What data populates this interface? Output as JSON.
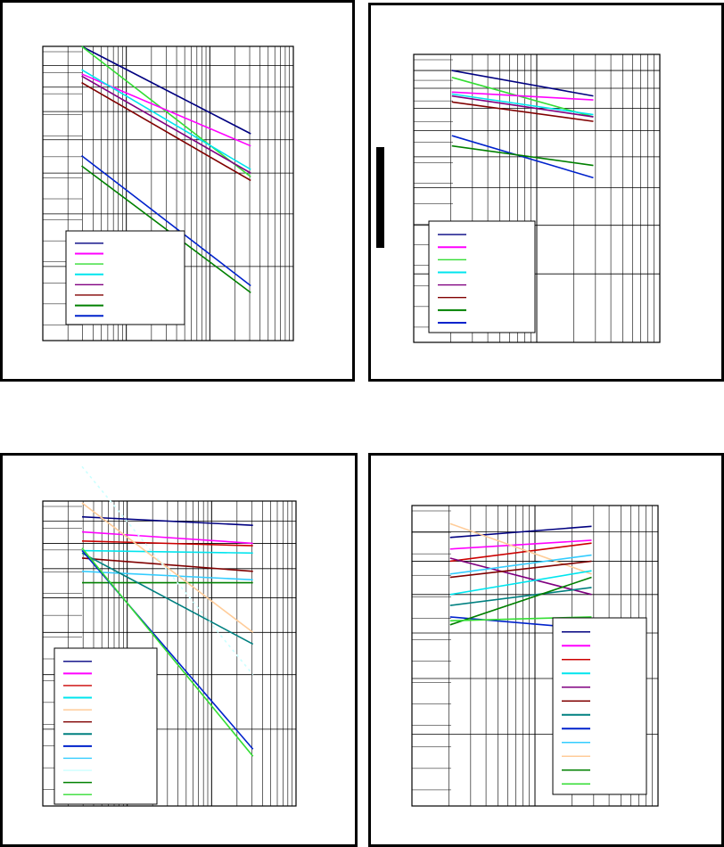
{
  "colors": {
    "navy": "#000080",
    "magenta": "#ff00ff",
    "red": "#cc0000",
    "cyan": "#00e5ee",
    "purple": "#800080",
    "darkred": "#800000",
    "teal": "#008080",
    "blue": "#0022cc",
    "skyblue": "#33ccff",
    "peach": "#ffcc99",
    "lightcyan": "#ccffff",
    "green": "#008000",
    "lime": "#33dd33"
  },
  "chart_data": [
    {
      "type": "line",
      "xscale": "log",
      "yscale": "log",
      "grid": true,
      "legend": "bottom-left",
      "series": [
        {
          "color": "navy",
          "x": [
            1,
            100
          ],
          "y": [
            1.0,
            0.62
          ]
        },
        {
          "color": "lime",
          "x": [
            1,
            100
          ],
          "y": [
            1.0,
            0.49
          ]
        },
        {
          "color": "magenta",
          "x": [
            1,
            100
          ],
          "y": [
            0.86,
            0.58
          ]
        },
        {
          "color": "cyan",
          "x": [
            1,
            100
          ],
          "y": [
            0.88,
            0.51
          ]
        },
        {
          "color": "purple",
          "x": [
            1,
            100
          ],
          "y": [
            0.85,
            0.5
          ]
        },
        {
          "color": "darkred",
          "x": [
            1,
            100
          ],
          "y": [
            0.82,
            0.48
          ]
        },
        {
          "color": "blue",
          "x": [
            1,
            100
          ],
          "y": [
            0.55,
            0.27
          ]
        },
        {
          "color": "green",
          "x": [
            1,
            100
          ],
          "y": [
            0.52,
            0.26
          ]
        }
      ],
      "legend_colors": [
        "navy",
        "magenta",
        "lime",
        "cyan",
        "purple",
        "darkred",
        "green",
        "blue"
      ]
    },
    {
      "type": "line",
      "xscale": "log",
      "yscale": "log",
      "grid": true,
      "legend": "bottom-left",
      "series": [
        {
          "color": "navy",
          "x": [
            1,
            10
          ],
          "y": [
            1.0,
            0.86
          ]
        },
        {
          "color": "lime",
          "x": [
            1,
            10
          ],
          "y": [
            0.96,
            0.76
          ]
        },
        {
          "color": "magenta",
          "x": [
            1,
            10
          ],
          "y": [
            0.88,
            0.84
          ]
        },
        {
          "color": "cyan",
          "x": [
            1,
            10
          ],
          "y": [
            0.87,
            0.77
          ]
        },
        {
          "color": "purple",
          "x": [
            1,
            10
          ],
          "y": [
            0.86,
            0.76
          ]
        },
        {
          "color": "darkred",
          "x": [
            1,
            10
          ],
          "y": [
            0.83,
            0.74
          ]
        },
        {
          "color": "blue",
          "x": [
            1,
            10
          ],
          "y": [
            0.68,
            0.53
          ]
        },
        {
          "color": "green",
          "x": [
            1,
            10
          ],
          "y": [
            0.64,
            0.57
          ]
        }
      ],
      "legend_colors": [
        "navy",
        "magenta",
        "lime",
        "cyan",
        "purple",
        "darkred",
        "green",
        "blue"
      ]
    },
    {
      "type": "line",
      "xscale": "log",
      "yscale": "log",
      "grid": true,
      "legend": "bottom-left",
      "series": [
        {
          "color": "navy",
          "x": [
            1,
            100
          ],
          "y": [
            0.92,
            0.88
          ]
        },
        {
          "color": "magenta",
          "x": [
            1,
            100
          ],
          "y": [
            0.85,
            0.8
          ]
        },
        {
          "color": "red",
          "x": [
            1,
            100
          ],
          "y": [
            0.81,
            0.79
          ]
        },
        {
          "color": "cyan",
          "x": [
            1,
            100
          ],
          "y": [
            0.77,
            0.76
          ]
        },
        {
          "color": "darkred",
          "x": [
            1,
            100
          ],
          "y": [
            0.74,
            0.69
          ]
        },
        {
          "color": "skyblue",
          "x": [
            1,
            100
          ],
          "y": [
            0.69,
            0.66
          ]
        },
        {
          "color": "green",
          "x": [
            1,
            100
          ],
          "y": [
            0.65,
            0.65
          ]
        },
        {
          "color": "peach",
          "x": [
            1,
            100
          ],
          "y": [
            0.99,
            0.5
          ]
        },
        {
          "color": "teal",
          "x": [
            1,
            100
          ],
          "y": [
            0.76,
            0.47
          ]
        },
        {
          "color": "lightcyan",
          "x": [
            1,
            100
          ],
          "y": [
            1.2,
            0.4
          ]
        },
        {
          "color": "blue",
          "x": [
            1,
            100
          ],
          "y": [
            0.77,
            0.27
          ]
        },
        {
          "color": "lime",
          "x": [
            1,
            100
          ],
          "y": [
            0.78,
            0.26
          ]
        }
      ],
      "legend_colors": [
        "navy",
        "magenta",
        "red",
        "cyan",
        "peach",
        "darkred",
        "teal",
        "blue",
        "skyblue",
        "lightcyan",
        "green",
        "lime"
      ]
    },
    {
      "type": "line",
      "xscale": "log",
      "yscale": "log",
      "grid": true,
      "legend": "bottom-right",
      "series": [
        {
          "color": "navy",
          "x": [
            1,
            10
          ],
          "y": [
            0.88,
            0.92
          ]
        },
        {
          "color": "magenta",
          "x": [
            1,
            10
          ],
          "y": [
            0.84,
            0.87
          ]
        },
        {
          "color": "red",
          "x": [
            1,
            10
          ],
          "y": [
            0.8,
            0.86
          ]
        },
        {
          "color": "peach",
          "x": [
            1,
            10
          ],
          "y": [
            0.93,
            0.76
          ]
        },
        {
          "color": "purple",
          "x": [
            1,
            10
          ],
          "y": [
            0.81,
            0.7
          ]
        },
        {
          "color": "darkred",
          "x": [
            1,
            10
          ],
          "y": [
            0.75,
            0.8
          ]
        },
        {
          "color": "skyblue",
          "x": [
            1,
            10
          ],
          "y": [
            0.76,
            0.82
          ]
        },
        {
          "color": "cyan",
          "x": [
            1,
            10
          ],
          "y": [
            0.7,
            0.77
          ]
        },
        {
          "color": "teal",
          "x": [
            1,
            10
          ],
          "y": [
            0.67,
            0.72
          ]
        },
        {
          "color": "blue",
          "x": [
            1,
            10
          ],
          "y": [
            0.64,
            0.61
          ]
        },
        {
          "color": "green",
          "x": [
            1,
            10
          ],
          "y": [
            0.62,
            0.75
          ]
        },
        {
          "color": "lime",
          "x": [
            1,
            10
          ],
          "y": [
            0.63,
            0.64
          ]
        }
      ],
      "legend_colors": [
        "navy",
        "magenta",
        "red",
        "cyan",
        "purple",
        "darkred",
        "teal",
        "blue",
        "skyblue",
        "peach",
        "green",
        "lime"
      ]
    }
  ]
}
